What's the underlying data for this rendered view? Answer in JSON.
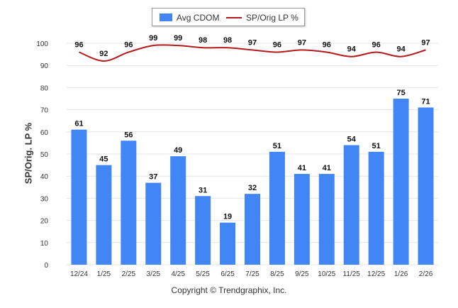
{
  "legend": {
    "bar_label": "Avg CDOM",
    "line_label": "SP/Orig LP %"
  },
  "ylabel": "SP/Orig. LP %",
  "copyright": "Copyright © Trendgraphix, Inc.",
  "colors": {
    "bar": "#4285f4",
    "line": "#b31b1b",
    "grid": "#e4e4e4",
    "text": "#333333"
  },
  "chart_data": {
    "type": "bar",
    "categories": [
      "12/24",
      "1/25",
      "2/25",
      "3/25",
      "4/25",
      "5/25",
      "6/25",
      "7/25",
      "8/25",
      "9/25",
      "10/25",
      "11/25",
      "12/25",
      "1/26",
      "2/26"
    ],
    "series": [
      {
        "name": "Avg CDOM",
        "type": "bar",
        "values": [
          61,
          45,
          56,
          37,
          49,
          31,
          19,
          32,
          51,
          41,
          41,
          54,
          51,
          75,
          71
        ]
      },
      {
        "name": "SP/Orig LP %",
        "type": "line",
        "values": [
          96,
          92,
          96,
          99,
          99,
          98,
          98,
          97,
          96,
          97,
          96,
          94,
          96,
          94,
          97
        ]
      }
    ],
    "ylabel": "SP/Orig. LP %",
    "yticks": [
      0,
      10,
      20,
      30,
      40,
      50,
      60,
      70,
      80,
      90,
      100
    ],
    "ylim": [
      0,
      100
    ],
    "grid": true,
    "legend": "top-center"
  }
}
